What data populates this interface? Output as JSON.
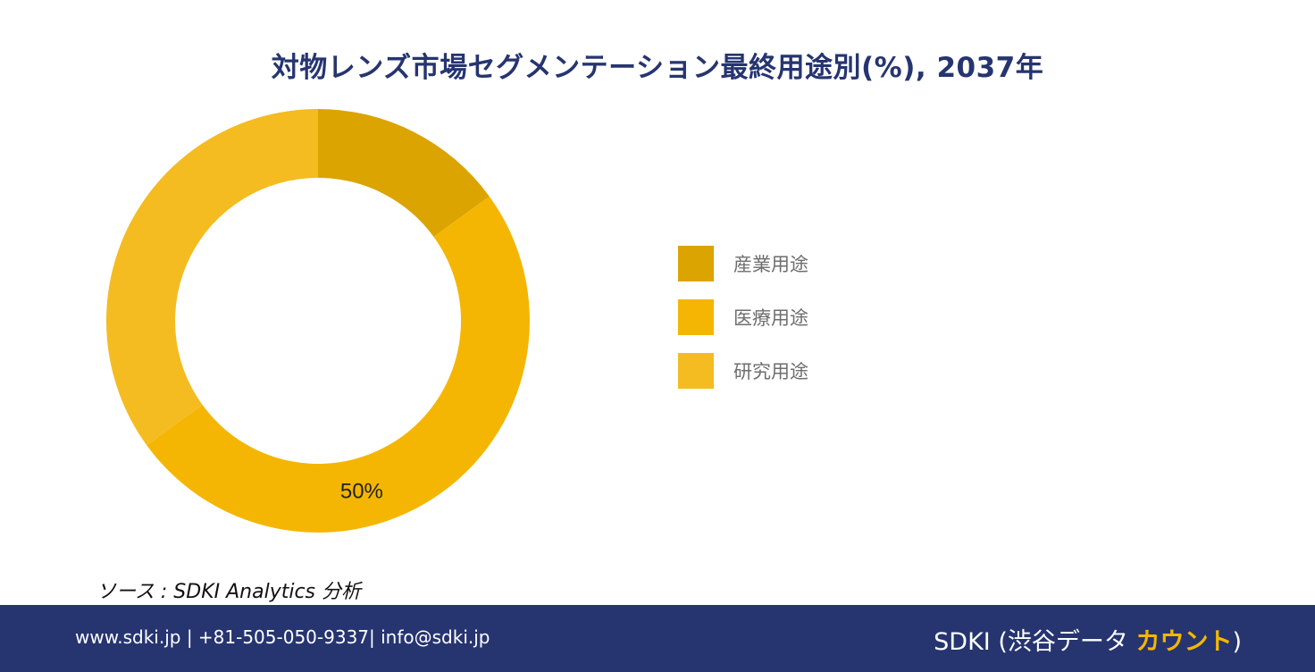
{
  "page": {
    "title": "対物レンズ市場セグメンテーション最終用途別(%), 2037年",
    "source": "ソース : SDKI Analytics 分析"
  },
  "chart_data": {
    "type": "pie",
    "donut": true,
    "categories": [
      "産業用途",
      "医療用途",
      "研究用途"
    ],
    "values": [
      15,
      50,
      35
    ],
    "colors": [
      "#dba400",
      "#f4b602",
      "#f4bc20"
    ],
    "data_labels": [
      "",
      "50%",
      ""
    ],
    "legend_position": "right"
  },
  "footer": {
    "contact": "www.sdki.jp | +81-505-050-9337| info@sdki.jp",
    "brand_prefix": "SDKI (渋谷データ ",
    "brand_accent": "カウント",
    "brand_suffix": ")"
  }
}
